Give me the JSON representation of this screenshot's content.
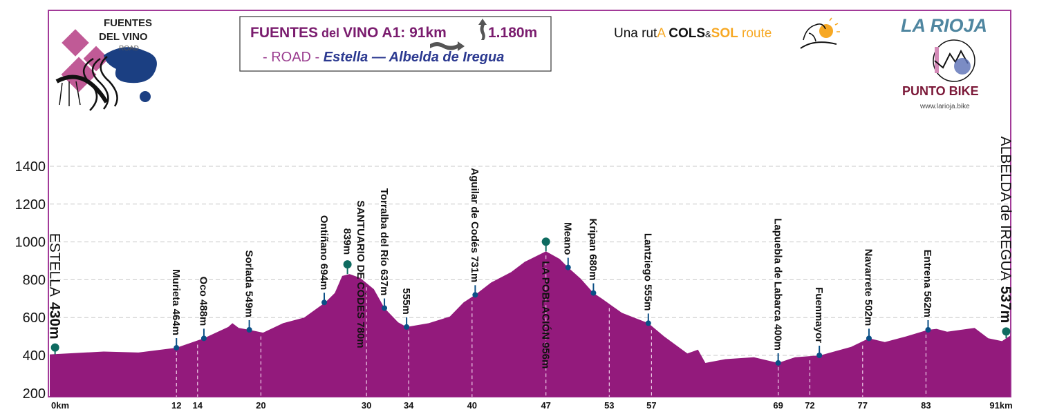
{
  "header": {
    "title_part1": "FUENTES",
    "title_part2": " del ",
    "title_part3": "VINO A1: 91km",
    "title_part4": "1.180m",
    "subtitle_part1": "- ROAD - ",
    "subtitle_part2": "Estella  — Albelda de Iregua",
    "route_tagline": {
      "p1": "Una rut",
      "p2": "A ",
      "p3": "COLS",
      "p4": "&",
      "p5": "SOL",
      "p6": " route"
    }
  },
  "logos": {
    "left": {
      "line1": "FUENTES",
      "line2": "DEL VINO",
      "line3": "ROAD"
    },
    "right": {
      "title": "LA RIOJA",
      "brand": "PUNTO BIKE",
      "url": "www.larioja.bike"
    }
  },
  "colors": {
    "profile_fill": "#931a7c",
    "frame": "#a23a98",
    "waypoint_dot": "#0b4f86",
    "endpoint_dot": "#0e6b60",
    "title": "#7a1c6e",
    "subtitle_blue": "#2b3990",
    "la_rioja": "#4f86a0",
    "punto_bike": "#7b1838",
    "sol_orange": "#f7a823"
  },
  "chart_data": {
    "type": "area",
    "xlabel": "",
    "ylabel": "",
    "x_unit": "km",
    "xlim": [
      0,
      91
    ],
    "ylim": [
      190,
      1500
    ],
    "grid": true,
    "yticks": [
      "200",
      "400",
      "600",
      "800",
      "1000",
      "1200",
      "1400"
    ],
    "xticks": [
      {
        "km": 0,
        "label": "0km"
      },
      {
        "km": 12,
        "label": "12"
      },
      {
        "km": 14,
        "label": "14"
      },
      {
        "km": 20,
        "label": "20"
      },
      {
        "km": 30,
        "label": "30"
      },
      {
        "km": 34,
        "label": "34"
      },
      {
        "km": 40,
        "label": "40"
      },
      {
        "km": 47,
        "label": "47"
      },
      {
        "km": 53,
        "label": "53"
      },
      {
        "km": 57,
        "label": "57"
      },
      {
        "km": 69,
        "label": "69"
      },
      {
        "km": 72,
        "label": "72"
      },
      {
        "km": 77,
        "label": "77"
      },
      {
        "km": 83,
        "label": "83"
      },
      {
        "km": 91,
        "label": "91km"
      }
    ],
    "profile": [
      [
        0,
        405
      ],
      [
        5.1,
        420
      ],
      [
        8.4,
        415
      ],
      [
        12,
        440
      ],
      [
        14.6,
        490
      ],
      [
        16.9,
        550
      ],
      [
        17.3,
        570
      ],
      [
        17.9,
        545
      ],
      [
        18.9,
        535
      ],
      [
        20.2,
        520
      ],
      [
        22.1,
        570
      ],
      [
        24.1,
        600
      ],
      [
        26.1,
        680
      ],
      [
        27,
        730
      ],
      [
        27.7,
        820
      ],
      [
        28.4,
        830
      ],
      [
        29.4,
        810
      ],
      [
        30.7,
        750
      ],
      [
        31.7,
        650
      ],
      [
        33,
        575
      ],
      [
        33.8,
        550
      ],
      [
        35.9,
        570
      ],
      [
        37.9,
        605
      ],
      [
        39.2,
        680
      ],
      [
        40.3,
        720
      ],
      [
        41.8,
        785
      ],
      [
        43.7,
        840
      ],
      [
        45,
        895
      ],
      [
        47,
        950
      ],
      [
        48.3,
        910
      ],
      [
        49.1,
        865
      ],
      [
        50.3,
        805
      ],
      [
        51.5,
        730
      ],
      [
        52.3,
        700
      ],
      [
        54.2,
        625
      ],
      [
        56.7,
        570
      ],
      [
        58.2,
        500
      ],
      [
        60.4,
        410
      ],
      [
        61.4,
        430
      ],
      [
        62.1,
        360
      ],
      [
        64,
        380
      ],
      [
        66.7,
        390
      ],
      [
        69,
        360
      ],
      [
        70.6,
        390
      ],
      [
        73,
        400
      ],
      [
        75.9,
        445
      ],
      [
        77.6,
        490
      ],
      [
        79.1,
        470
      ],
      [
        81.1,
        500
      ],
      [
        83.2,
        535
      ],
      [
        84,
        540
      ],
      [
        85,
        525
      ],
      [
        86.3,
        535
      ],
      [
        87.6,
        545
      ],
      [
        88.9,
        490
      ],
      [
        90.2,
        475
      ],
      [
        91,
        505
      ]
    ],
    "waypoints": [
      {
        "km": 0.5,
        "elev": 405,
        "name": "ESTELLA",
        "elev_label": "430m",
        "kind": "endpoint"
      },
      {
        "km": 12,
        "elev": 440,
        "label": "Murieta 464m",
        "kind": "town"
      },
      {
        "km": 14.6,
        "elev": 490,
        "label": "Oco 488m",
        "kind": "town"
      },
      {
        "km": 18.9,
        "elev": 535,
        "label": "Sorlada 549m",
        "kind": "town"
      },
      {
        "km": 26,
        "elev": 680,
        "label": "Ontiñano 694m",
        "kind": "town"
      },
      {
        "km": 28.2,
        "elev": 830,
        "label": "839m",
        "kind": "summit"
      },
      {
        "km": 29.5,
        "elev": 1220,
        "label": "SANTUARIO DE CÓDES 780m",
        "kind": "text"
      },
      {
        "km": 31.7,
        "elev": 650,
        "label": "Torralba del Río 637m",
        "kind": "town"
      },
      {
        "km": 33.8,
        "elev": 550,
        "label": "555m",
        "kind": "town"
      },
      {
        "km": 40.3,
        "elev": 720,
        "label": "Aguilar de Codés 731m",
        "kind": "town"
      },
      {
        "km": 47,
        "elev": 950,
        "label": "LA POBLACIÓN 956m",
        "kind": "summit-below"
      },
      {
        "km": 49.1,
        "elev": 865,
        "label": "Meano",
        "kind": "town"
      },
      {
        "km": 51.5,
        "elev": 730,
        "label": "Kripan 680m",
        "kind": "town"
      },
      {
        "km": 56.7,
        "elev": 570,
        "label": "Lantziego 555m",
        "kind": "town"
      },
      {
        "km": 69,
        "elev": 360,
        "label": "Lapuebla de Labarca 400m",
        "kind": "town"
      },
      {
        "km": 72.9,
        "elev": 400,
        "label": "Fuenmayor",
        "kind": "town"
      },
      {
        "km": 77.6,
        "elev": 490,
        "label": "Navarrete 502m",
        "kind": "town"
      },
      {
        "km": 83.2,
        "elev": 535,
        "label": "Entrena 562m",
        "kind": "town"
      },
      {
        "km": 90.6,
        "elev": 490,
        "name": "ALBELDA de IREGUA",
        "elev_label": "537m",
        "kind": "endpoint"
      }
    ]
  }
}
